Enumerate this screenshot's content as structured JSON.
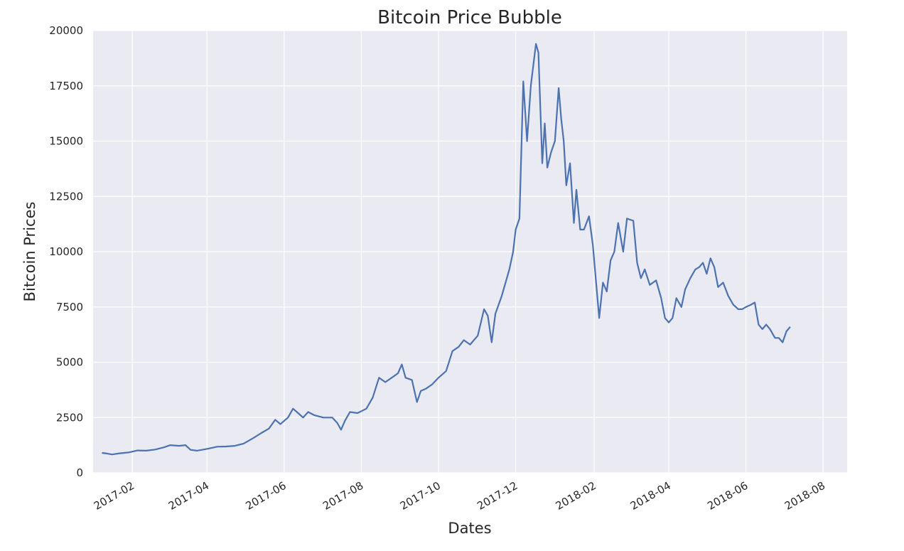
{
  "chart_data": {
    "type": "line",
    "title": "Bitcoin Price Bubble",
    "xlabel": "Dates",
    "ylabel": "Bitcoin Prices",
    "x_tick_labels": [
      "2017-02",
      "2017-04",
      "2017-06",
      "2017-08",
      "2017-10",
      "2017-12",
      "2018-02",
      "2018-04",
      "2018-06",
      "2018-08"
    ],
    "y_tick_labels": [
      "0",
      "2500",
      "5000",
      "7500",
      "10000",
      "12500",
      "15000",
      "17500",
      "20000"
    ],
    "xlim": [
      "2017-01-01",
      "2018-08-20"
    ],
    "ylim": [
      0,
      20000
    ],
    "grid": true,
    "colors": {
      "background": "#EAEAF2",
      "grid": "#FFFFFF",
      "line": "#4C72B0",
      "text": "#262626"
    },
    "series": [
      {
        "x": [
          "2017-01-08",
          "2017-01-12",
          "2017-01-16",
          "2017-01-22",
          "2017-01-29",
          "2017-02-05",
          "2017-02-12",
          "2017-02-19",
          "2017-02-26",
          "2017-03-03",
          "2017-03-10",
          "2017-03-15",
          "2017-03-19",
          "2017-03-24",
          "2017-03-28",
          "2017-04-02",
          "2017-04-09",
          "2017-04-16",
          "2017-04-23",
          "2017-04-30",
          "2017-05-07",
          "2017-05-14",
          "2017-05-20",
          "2017-05-25",
          "2017-05-29",
          "2017-06-04",
          "2017-06-08",
          "2017-06-12",
          "2017-06-16",
          "2017-06-20",
          "2017-06-25",
          "2017-07-02",
          "2017-07-09",
          "2017-07-13",
          "2017-07-16",
          "2017-07-19",
          "2017-07-23",
          "2017-07-29",
          "2017-08-05",
          "2017-08-10",
          "2017-08-15",
          "2017-08-20",
          "2017-08-25",
          "2017-08-30",
          "2017-09-02",
          "2017-09-05",
          "2017-09-10",
          "2017-09-14",
          "2017-09-17",
          "2017-09-21",
          "2017-09-26",
          "2017-10-01",
          "2017-10-07",
          "2017-10-12",
          "2017-10-17",
          "2017-10-21",
          "2017-10-26",
          "2017-11-01",
          "2017-11-06",
          "2017-11-09",
          "2017-11-12",
          "2017-11-15",
          "2017-11-20",
          "2017-11-26",
          "2017-11-29",
          "2017-12-01",
          "2017-12-04",
          "2017-12-07",
          "2017-12-10",
          "2017-12-13",
          "2017-12-17",
          "2017-12-19",
          "2017-12-22",
          "2017-12-24",
          "2017-12-26",
          "2017-12-29",
          "2018-01-01",
          "2018-01-04",
          "2018-01-06",
          "2018-01-08",
          "2018-01-10",
          "2018-01-13",
          "2018-01-16",
          "2018-01-18",
          "2018-01-21",
          "2018-01-24",
          "2018-01-28",
          "2018-01-31",
          "2018-02-02",
          "2018-02-05",
          "2018-02-08",
          "2018-02-11",
          "2018-02-14",
          "2018-02-17",
          "2018-02-20",
          "2018-02-24",
          "2018-02-27",
          "2018-03-04",
          "2018-03-07",
          "2018-03-10",
          "2018-03-13",
          "2018-03-17",
          "2018-03-22",
          "2018-03-26",
          "2018-03-29",
          "2018-04-01",
          "2018-04-04",
          "2018-04-07",
          "2018-04-11",
          "2018-04-14",
          "2018-04-18",
          "2018-04-22",
          "2018-04-25",
          "2018-04-28",
          "2018-05-01",
          "2018-05-04",
          "2018-05-07",
          "2018-05-10",
          "2018-05-14",
          "2018-05-18",
          "2018-05-22",
          "2018-05-26",
          "2018-05-29",
          "2018-06-01",
          "2018-06-05",
          "2018-06-08",
          "2018-06-11",
          "2018-06-14",
          "2018-06-17",
          "2018-06-20",
          "2018-06-24",
          "2018-06-27",
          "2018-06-30",
          "2018-07-03",
          "2018-07-06"
        ],
        "values": [
          900,
          870,
          830,
          880,
          920,
          1010,
          1000,
          1050,
          1150,
          1250,
          1220,
          1250,
          1040,
          1000,
          1040,
          1090,
          1180,
          1190,
          1220,
          1320,
          1550,
          1800,
          2000,
          2400,
          2200,
          2500,
          2900,
          2700,
          2500,
          2750,
          2600,
          2500,
          2500,
          2250,
          1950,
          2350,
          2750,
          2700,
          2900,
          3400,
          4300,
          4100,
          4300,
          4500,
          4900,
          4300,
          4200,
          3200,
          3700,
          3800,
          4000,
          4300,
          4600,
          5500,
          5700,
          6000,
          5800,
          6200,
          7400,
          7100,
          5900,
          7200,
          8000,
          9200,
          10000,
          11000,
          11500,
          17700,
          15000,
          17500,
          19400,
          19000,
          14000,
          15800,
          13800,
          14500,
          15000,
          17400,
          16000,
          15000,
          13000,
          14000,
          11300,
          12800,
          11000,
          11000,
          11600,
          10300,
          9000,
          7000,
          8600,
          8200,
          9600,
          10000,
          11300,
          10000,
          11500,
          11400,
          9500,
          8800,
          9200,
          8500,
          8700,
          7900,
          7000,
          6800,
          7000,
          7900,
          7500,
          8300,
          8800,
          9200,
          9300,
          9500,
          9000,
          9700,
          9300,
          8400,
          8600,
          8000,
          7600,
          7400,
          7400,
          7500,
          7600,
          7700,
          6700,
          6500,
          6700,
          6500,
          6100,
          6100,
          5900,
          6400,
          6600
        ]
      }
    ]
  }
}
